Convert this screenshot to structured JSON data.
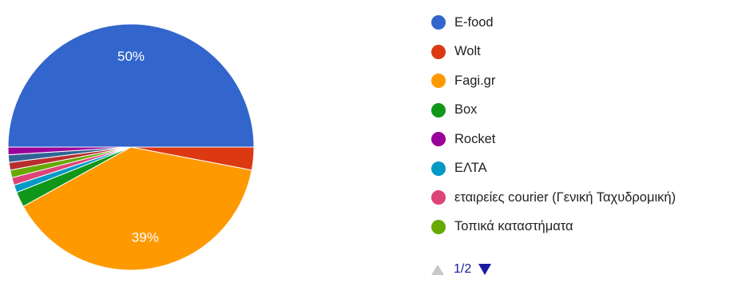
{
  "chart_data": {
    "type": "pie",
    "slices": [
      {
        "label": "E-food",
        "value": 50,
        "color": "#3366cc",
        "display": "50%"
      },
      {
        "label": "Wolt",
        "value": 3,
        "color": "#dc3912",
        "display": ""
      },
      {
        "label": "Fagi.gr",
        "value": 39,
        "color": "#ff9900",
        "display": "39%"
      },
      {
        "label": "Box",
        "value": 2,
        "color": "#109618",
        "display": ""
      },
      {
        "label": "ΕΛΤΑ",
        "value": 1,
        "color": "#0099c6",
        "display": ""
      },
      {
        "label": "εταιρείες courier (Γενική Ταχυδρομική)",
        "value": 1,
        "color": "#dd4477",
        "display": ""
      },
      {
        "label": "Τοπικά καταστήματα",
        "value": 1,
        "color": "#66aa00",
        "display": ""
      },
      {
        "label": "",
        "value": 1,
        "color": "#b82e2e",
        "display": ""
      },
      {
        "label": "",
        "value": 1,
        "color": "#316395",
        "display": ""
      },
      {
        "label": "Rocket",
        "value": 1,
        "color": "#990099",
        "display": ""
      }
    ]
  },
  "legend": {
    "items": [
      {
        "label": "E-food",
        "color": "#3366cc"
      },
      {
        "label": "Wolt",
        "color": "#dc3912"
      },
      {
        "label": "Fagi.gr",
        "color": "#ff9900"
      },
      {
        "label": "Box",
        "color": "#109618"
      },
      {
        "label": "Rocket",
        "color": "#990099"
      },
      {
        "label": "ΕΛΤΑ",
        "color": "#0099c6"
      },
      {
        "label": "εταιρείες courier (Γενική Ταχυδρομική)",
        "color": "#dd4477"
      },
      {
        "label": "Τοπικά καταστήματα",
        "color": "#66aa00"
      }
    ]
  },
  "pager": {
    "text": "1/2",
    "prev_icon": "triangle-up-icon",
    "next_icon": "triangle-down-icon"
  }
}
